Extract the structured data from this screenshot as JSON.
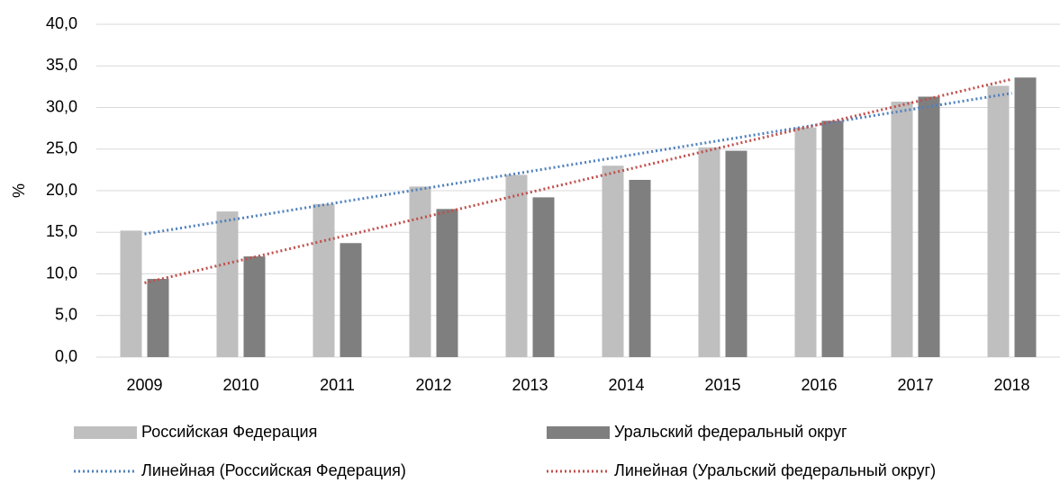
{
  "chart_data": {
    "type": "bar",
    "y_label": "%",
    "categories": [
      "2009",
      "2010",
      "2011",
      "2012",
      "2013",
      "2014",
      "2015",
      "2016",
      "2017",
      "2018"
    ],
    "series": [
      {
        "name": "Российская Федерация",
        "color": "#bfbfbf",
        "values": [
          15.2,
          17.5,
          18.4,
          20.5,
          21.9,
          23.0,
          25.2,
          27.6,
          30.7,
          32.6
        ],
        "trendline": {
          "name": "Линейная (Российская Федерация)",
          "color": "#4f81bd",
          "type": "linear",
          "style": "dotted"
        }
      },
      {
        "name": "Уральский федеральный округ",
        "color": "#7f7f7f",
        "values": [
          9.4,
          12.1,
          13.7,
          17.8,
          19.2,
          21.3,
          24.8,
          28.4,
          31.3,
          33.6
        ],
        "trendline": {
          "name": "Линейная (Уральский федеральный округ)",
          "color": "#c0504d",
          "type": "linear",
          "style": "dotted"
        }
      }
    ],
    "ylim": [
      0,
      40
    ],
    "yticks": [
      {
        "value": 0,
        "label": "0,0"
      },
      {
        "value": 5,
        "label": "5,0"
      },
      {
        "value": 10,
        "label": "10,0"
      },
      {
        "value": 15,
        "label": "15,0"
      },
      {
        "value": 20,
        "label": "20,0"
      },
      {
        "value": 25,
        "label": "25,0"
      },
      {
        "value": 30,
        "label": "30,0"
      },
      {
        "value": 35,
        "label": "35,0"
      },
      {
        "value": 40,
        "label": "40,0"
      }
    ],
    "grid": true
  }
}
